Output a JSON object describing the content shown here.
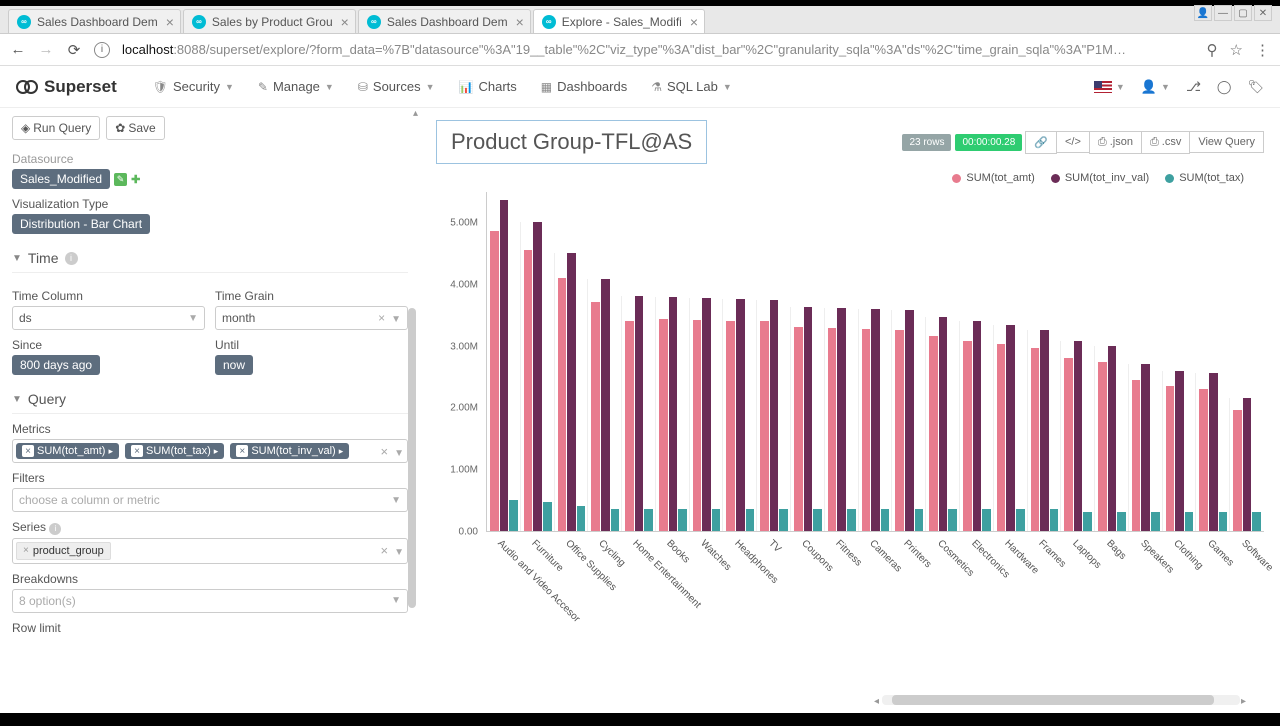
{
  "browser": {
    "tabs": [
      {
        "title": "Sales Dashboard Dem",
        "active": false
      },
      {
        "title": "Sales by Product Grou",
        "active": false
      },
      {
        "title": "Sales Dashboard Dem",
        "active": false
      },
      {
        "title": "Explore - Sales_Modifi",
        "active": true
      }
    ],
    "url_host": "localhost",
    "url_rest": ":8088/superset/explore/?form_data=%7B\"datasource\"%3A\"19__table\"%2C\"viz_type\"%3A\"dist_bar\"%2C\"granularity_sqla\"%3A\"ds\"%2C\"time_grain_sqla\"%3A\"P1M…"
  },
  "nav": {
    "brand": "Superset",
    "items": [
      "Security",
      "Manage",
      "Sources",
      "Charts",
      "Dashboards",
      "SQL Lab"
    ],
    "icons": [
      "🛡",
      "✎",
      "⛁",
      "📊",
      "▦",
      "⚗"
    ]
  },
  "toolbar": {
    "run": "Run Query",
    "save": "Save"
  },
  "panel": {
    "datasource_label": "Datasource",
    "datasource_value": "Sales_Modified",
    "viz_type_label": "Visualization Type",
    "viz_type_value": "Distribution - Bar Chart",
    "time_hdr": "Time",
    "time_col_label": "Time Column",
    "time_col_value": "ds",
    "time_grain_label": "Time Grain",
    "time_grain_value": "month",
    "since_label": "Since",
    "since_value": "800 days ago",
    "until_label": "Until",
    "until_value": "now",
    "query_hdr": "Query",
    "metrics_label": "Metrics",
    "metrics": [
      "SUM(tot_amt)",
      "SUM(tot_tax)",
      "SUM(tot_inv_val)"
    ],
    "filters_label": "Filters",
    "filters_placeholder": "choose a column or metric",
    "series_label": "Series",
    "series_value": "product_group",
    "breakdowns_label": "Breakdowns",
    "breakdowns_placeholder": "8 option(s)",
    "row_limit_label": "Row limit"
  },
  "chart": {
    "title": "Product Group-TFL@AS",
    "rows_badge": "23 rows",
    "time_badge": "00:00:00.28",
    "btn_json": ".json",
    "btn_csv": ".csv",
    "btn_view": "View Query",
    "legend": [
      {
        "label": "SUM(tot_amt)",
        "color": "#e87b8e"
      },
      {
        "label": "SUM(tot_inv_val)",
        "color": "#6b2c57"
      },
      {
        "label": "SUM(tot_tax)",
        "color": "#3ea0a0"
      }
    ],
    "y_ticks": [
      "0.00",
      "1.00M",
      "2.00M",
      "3.00M",
      "4.00M",
      "5.00M"
    ],
    "y_max": 5500000,
    "categories": [
      "Audio and Video Accesor",
      "Furniture",
      "Office Supplies",
      "Cycling",
      "Home Entertainment",
      "Books",
      "Watches",
      "Headphones",
      "TV",
      "Coupons",
      "Fitness",
      "Cameras",
      "Printers",
      "Cosmetics",
      "Electronics",
      "Hardware",
      "Frames",
      "Laptops",
      "Bags",
      "Speakers",
      "Clothing",
      "Games",
      "Software"
    ],
    "series1": [
      4850000,
      4550000,
      4100000,
      3700000,
      3400000,
      3430000,
      3420000,
      3400000,
      3400000,
      3300000,
      3280000,
      3270000,
      3250000,
      3150000,
      3080000,
      3030000,
      2960000,
      2800000,
      2730000,
      2450000,
      2340000,
      2300000,
      1950000
    ],
    "series2": [
      5350000,
      5000000,
      4500000,
      4080000,
      3800000,
      3780000,
      3770000,
      3750000,
      3730000,
      3630000,
      3610000,
      3590000,
      3570000,
      3470000,
      3390000,
      3330000,
      3250000,
      3080000,
      3000000,
      2700000,
      2590000,
      2550000,
      2150000
    ],
    "series3": [
      500000,
      470000,
      400000,
      360000,
      350000,
      350000,
      350000,
      350000,
      350000,
      350000,
      350000,
      350000,
      350000,
      350000,
      350000,
      350000,
      350000,
      300000,
      300000,
      300000,
      300000,
      300000,
      300000
    ],
    "colors": {
      "s1": "#e87b8e",
      "s2": "#6b2c57",
      "s3": "#3ea0a0"
    }
  }
}
